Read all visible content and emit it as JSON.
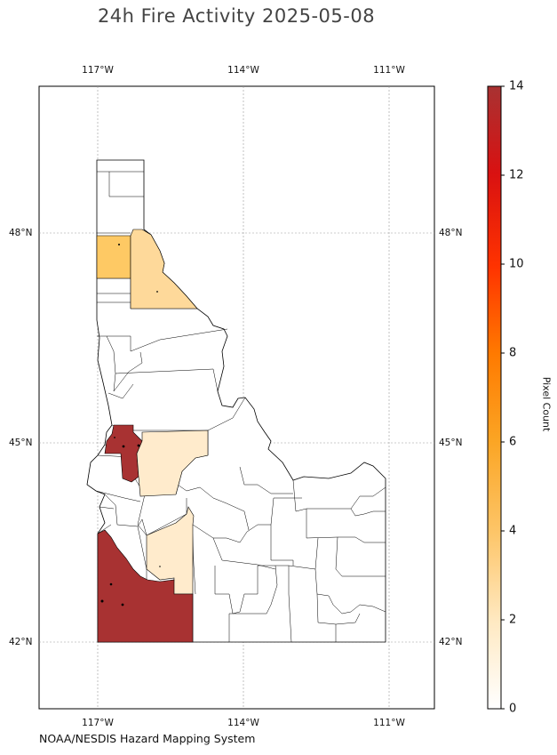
{
  "title": "24h Fire Activity 2025-05-08",
  "source_credit": "NOAA/NESDIS Hazard Mapping System",
  "map": {
    "region": "Idaho counties",
    "longitude_ticks": [
      "117°W",
      "114°W",
      "111°W"
    ],
    "latitude_ticks": [
      "48°N",
      "45°N",
      "42°N"
    ],
    "gridlines": true,
    "projection": "lat/lon"
  },
  "colorbar": {
    "label": "Pixel Count",
    "min": 0,
    "max": 14,
    "ticks": [
      "0",
      "2",
      "4",
      "6",
      "8",
      "10",
      "12",
      "14"
    ],
    "colors": [
      "#ffffff",
      "#ffe9c2",
      "#fdc66a",
      "#fba524",
      "#ff7a00",
      "#ff3300",
      "#e80000",
      "#cc1111",
      "#a83232"
    ]
  },
  "highlighted_counties": [
    {
      "name": "Bonner area (north panhandle west)",
      "pixel_count": 3,
      "color": "#fec964"
    },
    {
      "name": "Shoshone area (north panhandle east)",
      "pixel_count": 2,
      "color": "#fed99a"
    },
    {
      "name": "Adams area (west central)",
      "pixel_count": 14,
      "color": "#a83232"
    },
    {
      "name": "Valley area (central)",
      "pixel_count": 1,
      "color": "#ffebcc"
    },
    {
      "name": "Elmore area (south central)",
      "pixel_count": 1,
      "color": "#ffebcc"
    },
    {
      "name": "Owyhee area (southwest)",
      "pixel_count": 14,
      "color": "#a83232"
    }
  ]
}
